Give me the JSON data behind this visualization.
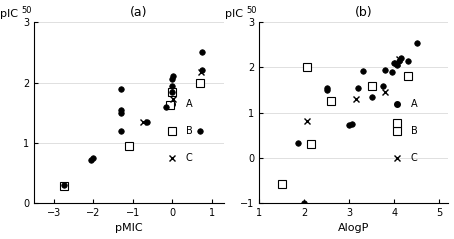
{
  "panel_a": {
    "title": "(a)",
    "xlabel": "pMIC",
    "ylabel": "pIC",
    "ylabel_sub": "50",
    "xlim": [
      -3.5,
      1.3
    ],
    "ylim": [
      0,
      3
    ],
    "xticks": [
      -3,
      -2,
      -1,
      0,
      1
    ],
    "yticks": [
      0,
      1,
      2,
      3
    ],
    "series_A": {
      "marker": "o",
      "color": "black",
      "markersize": 4,
      "label": "A",
      "x": [
        -2.75,
        -2.05,
        -2.0,
        -1.3,
        -1.3,
        -1.3,
        -1.3,
        -0.65,
        -0.15,
        0.0,
        0.0,
        0.0,
        0.02,
        0.7,
        0.75,
        0.75
      ],
      "y": [
        0.3,
        0.72,
        0.75,
        1.2,
        1.5,
        1.55,
        1.9,
        1.35,
        1.6,
        1.85,
        1.95,
        2.05,
        2.1,
        1.2,
        2.2,
        2.5
      ]
    },
    "series_B": {
      "marker": "s",
      "color": "white",
      "edgecolor": "black",
      "markersize": 6,
      "label": "B",
      "x": [
        -2.75,
        -1.1,
        -0.05,
        0.0,
        0.7
      ],
      "y": [
        0.28,
        0.95,
        1.62,
        1.85,
        2.0
      ]
    },
    "series_C": {
      "marker": "x",
      "color": "black",
      "markersize": 5,
      "label": "C",
      "x": [
        -0.75,
        0.02,
        0.72
      ],
      "y": [
        1.35,
        1.72,
        2.18
      ]
    }
  },
  "panel_b": {
    "title": "(b)",
    "xlabel": "AlogP",
    "ylabel": "pIC",
    "ylabel_sub": "50",
    "xlim": [
      1.0,
      5.2
    ],
    "ylim": [
      -1,
      3
    ],
    "xticks": [
      1,
      2,
      3,
      4,
      5
    ],
    "yticks": [
      -1,
      0,
      1,
      2,
      3
    ],
    "series_A": {
      "marker": "o",
      "color": "black",
      "markersize": 4,
      "label": "A",
      "x": [
        1.85,
        2.0,
        2.5,
        2.5,
        3.0,
        3.05,
        3.2,
        3.3,
        3.5,
        3.75,
        3.8,
        3.95,
        4.0,
        4.05,
        4.1,
        4.15,
        4.3,
        4.5
      ],
      "y": [
        0.32,
        -1.0,
        1.5,
        1.55,
        0.72,
        0.75,
        1.55,
        1.92,
        1.35,
        1.6,
        1.95,
        1.9,
        2.1,
        2.05,
        2.15,
        2.2,
        2.15,
        2.55
      ]
    },
    "series_B": {
      "marker": "s",
      "color": "white",
      "edgecolor": "black",
      "markersize": 6,
      "label": "B",
      "x": [
        1.5,
        2.05,
        2.15,
        2.6,
        3.5,
        4.05,
        4.3
      ],
      "y": [
        -0.58,
        2.0,
        0.3,
        1.25,
        1.6,
        0.78,
        1.8
      ]
    },
    "series_C": {
      "marker": "x",
      "color": "black",
      "markersize": 5,
      "label": "C",
      "x": [
        2.05,
        3.15,
        3.8,
        4.05,
        4.1
      ],
      "y": [
        0.82,
        1.3,
        1.45,
        2.1,
        2.18
      ]
    }
  },
  "legend_fontsize": 7,
  "tick_fontsize": 7,
  "label_fontsize": 8
}
